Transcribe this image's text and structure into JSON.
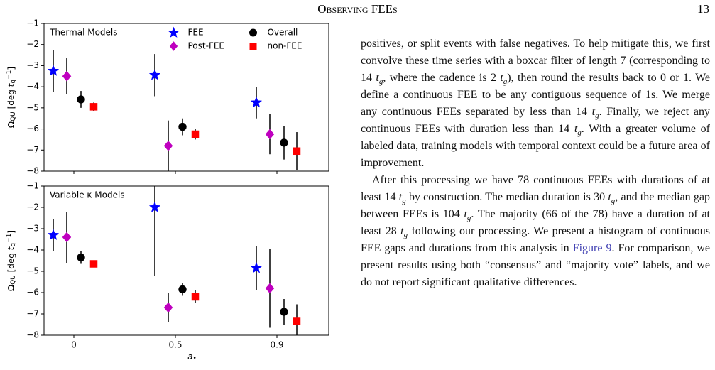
{
  "header": {
    "title": "Observing FEEs",
    "page": "13"
  },
  "chart_data": [
    {
      "type": "scatter",
      "title": "Thermal Models",
      "categories": [
        null,
        null,
        null
      ],
      "ylim": [
        -8,
        -1
      ],
      "yticks": [
        {
          "value": -1,
          "label": "−1"
        },
        {
          "value": -2,
          "label": "−2"
        },
        {
          "value": -3,
          "label": "−3"
        },
        {
          "value": -4,
          "label": "−4"
        },
        {
          "value": -5,
          "label": "−5"
        },
        {
          "value": -6,
          "label": "−6"
        },
        {
          "value": -7,
          "label": "−7"
        },
        {
          "value": -8,
          "label": "−8"
        }
      ],
      "ylabel": [
        {
          "text": "Ω"
        },
        {
          "text": "QU",
          "style": "sub"
        },
        {
          "text": " [deg "
        },
        {
          "text": "t",
          "style": "i"
        },
        {
          "text": "g",
          "style": "sub"
        },
        {
          "text": "−1",
          "style": "sup"
        },
        {
          "text": "]"
        }
      ],
      "legend": "upper center",
      "series": [
        {
          "name": "FEE",
          "color": "#0000ff",
          "marker": "star",
          "values": [
            -3.25,
            -3.45,
            -4.75
          ],
          "errors": [
            1.0,
            1.0,
            0.75
          ]
        },
        {
          "name": "Post-FEE",
          "color": "#bf00bf",
          "marker": "diamond",
          "values": [
            -3.5,
            -6.8,
            -6.25
          ],
          "errors": [
            0.85,
            1.2,
            0.95
          ]
        },
        {
          "name": "Overall",
          "color": "#000000",
          "marker": "circle",
          "values": [
            -4.6,
            -5.9,
            -6.65
          ],
          "errors": [
            0.4,
            0.4,
            0.8
          ]
        },
        {
          "name": "non-FEE",
          "color": "#ff0000",
          "marker": "square",
          "values": [
            -4.95,
            -6.25,
            -7.05
          ],
          "errors": [
            0.2,
            0.25,
            0.9
          ]
        }
      ]
    },
    {
      "type": "scatter",
      "title": "Variable κ Models",
      "categories": [
        "0",
        "0.5",
        "0.9"
      ],
      "xlabel": [
        {
          "text": "a",
          "style": "i"
        },
        {
          "text": "•",
          "style": "sub"
        }
      ],
      "ylim": [
        -8,
        -1
      ],
      "yticks": [
        {
          "value": -1,
          "label": "−1"
        },
        {
          "value": -2,
          "label": "−2"
        },
        {
          "value": -3,
          "label": "−3"
        },
        {
          "value": -4,
          "label": "−4"
        },
        {
          "value": -5,
          "label": "−5"
        },
        {
          "value": -6,
          "label": "−6"
        },
        {
          "value": -7,
          "label": "−7"
        },
        {
          "value": -8,
          "label": "−8"
        }
      ],
      "ylabel": [
        {
          "text": "Ω"
        },
        {
          "text": "QU",
          "style": "sub"
        },
        {
          "text": " [deg "
        },
        {
          "text": "t",
          "style": "i"
        },
        {
          "text": "g",
          "style": "sub"
        },
        {
          "text": "−1",
          "style": "sup"
        },
        {
          "text": "]"
        }
      ],
      "series": [
        {
          "color": "#0000ff",
          "marker": "star",
          "values": [
            -3.3,
            -2.0,
            -4.85
          ],
          "errors": [
            0.75,
            3.2,
            1.05
          ]
        },
        {
          "color": "#bf00bf",
          "marker": "diamond",
          "values": [
            -3.4,
            -6.7,
            -5.8
          ],
          "errors": [
            1.2,
            0.7,
            1.85
          ]
        },
        {
          "color": "#000000",
          "marker": "circle",
          "values": [
            -4.35,
            -5.85,
            -6.9
          ],
          "errors": [
            0.3,
            0.3,
            0.6
          ]
        },
        {
          "color": "#ff0000",
          "marker": "square",
          "values": [
            -4.65,
            -6.2,
            -7.35
          ],
          "errors": [
            0.1,
            0.3,
            0.8
          ]
        }
      ]
    }
  ],
  "text": {
    "paragraphs": [
      [
        {
          "text": "positives, or split events with false negatives. To help mitigate this, we first convolve these time series with a boxcar filter of length 7 (corresponding to 14 "
        },
        {
          "text": "t",
          "style": "i"
        },
        {
          "text": "g",
          "style": "isub"
        },
        {
          "text": ", where the cadence is 2 "
        },
        {
          "text": "t",
          "style": "i"
        },
        {
          "text": "g",
          "style": "isub"
        },
        {
          "text": "), then round the results back to 0 or 1. We define a continuous FEE to be any contiguous sequence of 1s. We merge any continuous FEEs separated by less than 14 "
        },
        {
          "text": "t",
          "style": "i"
        },
        {
          "text": "g",
          "style": "isub"
        },
        {
          "text": ". Finally, we reject any continuous FEEs with duration less than 14 "
        },
        {
          "text": "t",
          "style": "i"
        },
        {
          "text": "g",
          "style": "isub"
        },
        {
          "text": ". With a greater volume of labeled data, training models with temporal context could be a future area of improvement."
        }
      ],
      [
        {
          "text": "After this processing we have 78 continuous FEEs with durations of at least 14 "
        },
        {
          "text": "t",
          "style": "i"
        },
        {
          "text": "g",
          "style": "isub"
        },
        {
          "text": " by construction. The median duration is 30 "
        },
        {
          "text": "t",
          "style": "i"
        },
        {
          "text": "g",
          "style": "isub"
        },
        {
          "text": ", and the median gap between FEEs is 104 "
        },
        {
          "text": "t",
          "style": "i"
        },
        {
          "text": "g",
          "style": "isub"
        },
        {
          "text": ". The majority (66 of the 78) have a duration of at least 28 "
        },
        {
          "text": "t",
          "style": "i"
        },
        {
          "text": "g",
          "style": "isub"
        },
        {
          "text": " following our processing. We present a histogram of continuous FEE gaps and durations from this analysis in "
        },
        {
          "text": "Figure 9",
          "style": "link"
        },
        {
          "text": ". For comparison, we present results using both “consensus” and “majority vote” labels, and we do not report significant qualitative differences."
        }
      ]
    ]
  }
}
